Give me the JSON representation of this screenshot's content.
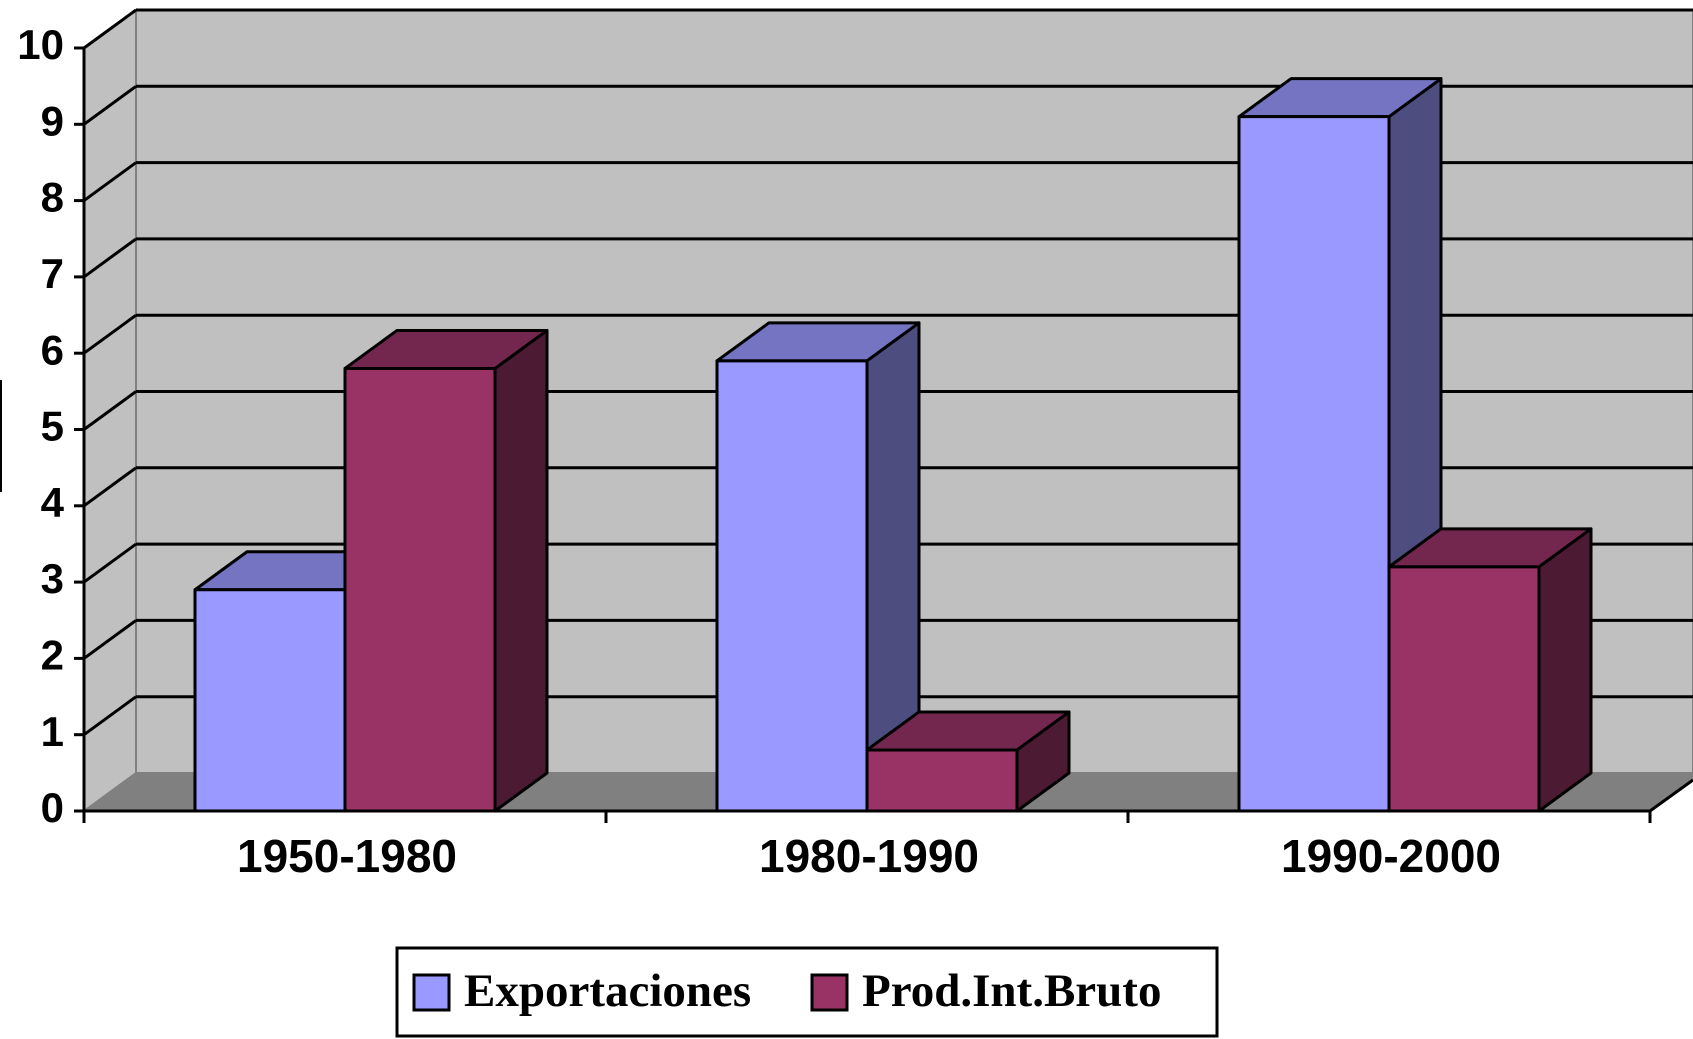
{
  "chart_data": {
    "type": "bar3d",
    "categories": [
      "1950-1980",
      "1980-1990",
      "1990-2000"
    ],
    "series": [
      {
        "name": "Exportaciones",
        "color": "#9999ff",
        "values": [
          2.9,
          5.9,
          9.1
        ]
      },
      {
        "name": "Prod.Int.Bruto",
        "color": "#993366",
        "values": [
          5.8,
          0.8,
          3.2
        ]
      }
    ],
    "ylim": [
      0,
      10
    ],
    "yticks": [
      0,
      1,
      2,
      3,
      4,
      5,
      6,
      7,
      8,
      9,
      10
    ],
    "grid": true,
    "legend": "bottom"
  }
}
